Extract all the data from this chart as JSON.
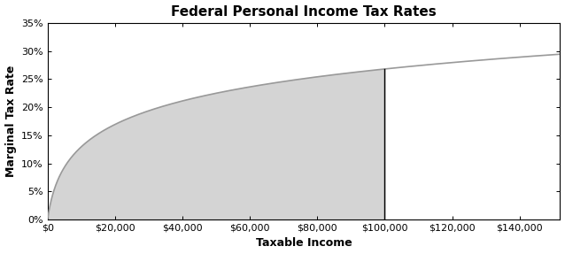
{
  "title": "Federal Personal Income Tax Rates",
  "xlabel": "Taxable Income",
  "ylabel": "Marginal Tax Rate",
  "x_max": 152000,
  "x_ticks": [
    0,
    20000,
    40000,
    60000,
    80000,
    100000,
    120000,
    140000
  ],
  "x_tick_labels": [
    "$0",
    "$20,000",
    "$40,000",
    "$60,000",
    "$80,000",
    "$100,000",
    "$120,000",
    "$140,000"
  ],
  "y_ticks": [
    0,
    0.05,
    0.1,
    0.15,
    0.2,
    0.25,
    0.3,
    0.35
  ],
  "y_tick_labels": [
    "0%",
    "5%",
    "10%",
    "15%",
    "20%",
    "25%",
    "30%",
    "35%"
  ],
  "y_max": 0.35,
  "curve_color": "#999999",
  "fill_color": "#d4d4d4",
  "vline_x": 100000,
  "vline_color": "#000000",
  "background_color": "#ffffff",
  "title_fontsize": 11,
  "label_fontsize": 9,
  "tick_fontsize": 8,
  "outer_border_color": "#aaaaaa",
  "outer_border_lw": 1.5
}
